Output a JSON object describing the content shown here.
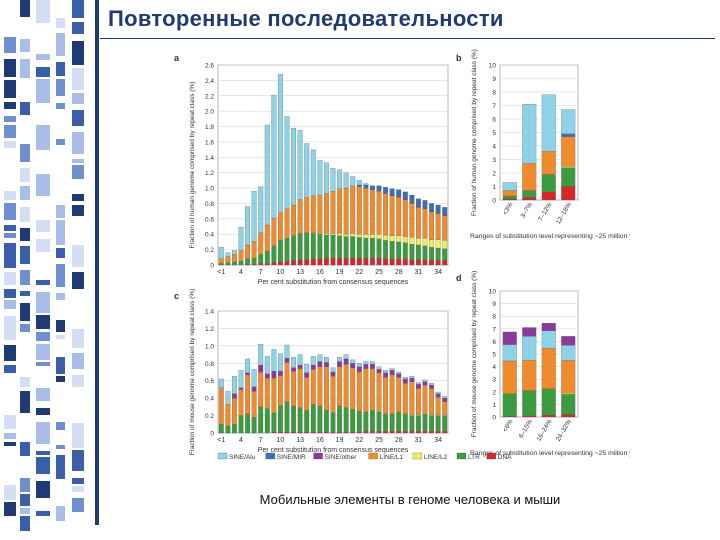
{
  "slide": {
    "title": "Повторенные последовательности",
    "caption": "Мобильные элементы в геноме человека и мыши"
  },
  "colors": {
    "brand": "#1f3b73",
    "SINE/Alu": "#8ed2e8",
    "SINE/MIR": "#3b6fb6",
    "SINE/other": "#8a3a9a",
    "LINE/L1": "#ef8b2c",
    "LINE/L2": "#f0ec63",
    "LTR": "#3d9b3f",
    "DNA": "#d7262a"
  },
  "chart_data": [
    {
      "panel": "a",
      "type": "bar",
      "stacked": true,
      "ylabel": "Fraction of human genome comprised by repeat class (%)",
      "xlabel": "Per cent substitution from consensus sequences",
      "ylim": [
        0,
        2.6
      ],
      "yticks": [
        "0",
        "0.2",
        "0.4",
        "0.6",
        "0.8",
        "1.0",
        "1.2",
        "1.4",
        "1.6",
        "1.8",
        "2.0",
        "2.2",
        "2.4",
        "2.6"
      ],
      "xticks": [
        "<1",
        "4",
        "7",
        "10",
        "13",
        "16",
        "19",
        "22",
        "25",
        "28",
        "31",
        "34"
      ],
      "categories": [
        "<1",
        "2",
        "3",
        "4",
        "5",
        "6",
        "7",
        "8",
        "9",
        "10",
        "11",
        "12",
        "13",
        "14",
        "15",
        "16",
        "17",
        "18",
        "19",
        "20",
        "21",
        "22",
        "23",
        "24",
        "25",
        "26",
        "27",
        "28",
        "29",
        "30",
        "31",
        "32",
        "33",
        "34",
        "35"
      ],
      "series": [
        {
          "name": "DNA",
          "values": [
            0,
            0,
            0,
            0,
            0.01,
            0.01,
            0.02,
            0.02,
            0.03,
            0.04,
            0.05,
            0.06,
            0.07,
            0.07,
            0.08,
            0.08,
            0.09,
            0.09,
            0.09,
            0.09,
            0.09,
            0.09,
            0.09,
            0.09,
            0.09,
            0.08,
            0.08,
            0.08,
            0.08,
            0.07,
            0.07,
            0.07,
            0.06,
            0.06,
            0.06
          ]
        },
        {
          "name": "LTR",
          "values": [
            0.02,
            0.03,
            0.04,
            0.05,
            0.07,
            0.08,
            0.12,
            0.16,
            0.22,
            0.28,
            0.3,
            0.32,
            0.34,
            0.35,
            0.33,
            0.32,
            0.3,
            0.3,
            0.29,
            0.28,
            0.28,
            0.27,
            0.26,
            0.26,
            0.25,
            0.24,
            0.23,
            0.22,
            0.21,
            0.2,
            0.19,
            0.18,
            0.17,
            0.16,
            0.15
          ]
        },
        {
          "name": "LINE/L2",
          "values": [
            0,
            0,
            0,
            0,
            0,
            0,
            0,
            0,
            0,
            0,
            0,
            0,
            0,
            0,
            0.01,
            0.01,
            0.02,
            0.02,
            0.03,
            0.03,
            0.04,
            0.04,
            0.05,
            0.05,
            0.06,
            0.07,
            0.07,
            0.08,
            0.08,
            0.09,
            0.09,
            0.1,
            0.1,
            0.11,
            0.11
          ]
        },
        {
          "name": "LINE/L1",
          "values": [
            0.06,
            0.08,
            0.1,
            0.14,
            0.18,
            0.22,
            0.28,
            0.34,
            0.36,
            0.36,
            0.38,
            0.4,
            0.44,
            0.46,
            0.48,
            0.5,
            0.52,
            0.55,
            0.58,
            0.6,
            0.62,
            0.62,
            0.6,
            0.58,
            0.56,
            0.54,
            0.52,
            0.5,
            0.48,
            0.44,
            0.4,
            0.38,
            0.36,
            0.34,
            0.32
          ]
        },
        {
          "name": "SINE/other",
          "values": [
            0,
            0,
            0,
            0,
            0,
            0,
            0,
            0,
            0,
            0,
            0,
            0,
            0,
            0,
            0,
            0,
            0,
            0,
            0,
            0,
            0,
            0,
            0,
            0,
            0.01,
            0.01,
            0.01,
            0.01,
            0.01,
            0.01,
            0.01,
            0.01,
            0.01,
            0.01,
            0.01
          ]
        },
        {
          "name": "SINE/MIR",
          "values": [
            0,
            0,
            0,
            0,
            0,
            0,
            0,
            0,
            0,
            0,
            0,
            0,
            0,
            0,
            0,
            0,
            0,
            0,
            0,
            0,
            0,
            0.02,
            0.04,
            0.05,
            0.06,
            0.07,
            0.08,
            0.09,
            0.09,
            0.1,
            0.1,
            0.1,
            0.1,
            0.1,
            0.1
          ]
        },
        {
          "name": "SINE/Alu",
          "values": [
            0.15,
            0.05,
            0.05,
            0.3,
            0.5,
            0.65,
            0.6,
            1.3,
            1.6,
            1.8,
            1.2,
            1.0,
            0.9,
            0.7,
            0.6,
            0.45,
            0.4,
            0.3,
            0.25,
            0.2,
            0.12,
            0.06,
            0.02,
            0,
            0,
            0,
            0,
            0,
            0,
            0,
            0,
            0,
            0,
            0,
            0
          ]
        }
      ]
    },
    {
      "panel": "b",
      "type": "bar",
      "stacked": true,
      "ylabel": "Fraction of human genome comprised by repeat class (%)",
      "xlabel": "Ranges of substitution level representing ~25 million years each",
      "ylim": [
        0,
        10
      ],
      "yticks": [
        "0",
        "1",
        "2",
        "3",
        "4",
        "5",
        "6",
        "7",
        "8",
        "9",
        "10"
      ],
      "categories": [
        "<3%",
        "3–7%",
        "7–12%",
        "12–18%"
      ],
      "series": [
        {
          "name": "DNA",
          "values": [
            0.1,
            0.2,
            0.6,
            1.0
          ]
        },
        {
          "name": "LTR",
          "values": [
            0.2,
            0.5,
            1.3,
            1.4
          ]
        },
        {
          "name": "LINE/L2",
          "values": [
            0,
            0,
            0,
            0.1
          ]
        },
        {
          "name": "LINE/L1",
          "values": [
            0.4,
            2.0,
            1.7,
            2.2
          ]
        },
        {
          "name": "SINE/MIR",
          "values": [
            0,
            0,
            0,
            0.2
          ]
        },
        {
          "name": "SINE/Alu",
          "values": [
            0.6,
            4.4,
            4.2,
            1.8
          ]
        }
      ]
    },
    {
      "panel": "c",
      "type": "bar",
      "stacked": true,
      "ylabel": "Fraction of mouse genome comprised by repeat class (%)",
      "xlabel": "Per cent substitution from consensus sequences",
      "ylim": [
        0,
        1.4
      ],
      "yticks": [
        "0",
        "0.2",
        "0.4",
        "0.6",
        "0.8",
        "1.0",
        "1.2",
        "1.4"
      ],
      "xticks": [
        "<1",
        "4",
        "7",
        "10",
        "13",
        "16",
        "19",
        "22",
        "25",
        "28",
        "31",
        "34"
      ],
      "categories": [
        "<1",
        "2",
        "3",
        "4",
        "5",
        "6",
        "7",
        "8",
        "9",
        "10",
        "11",
        "12",
        "13",
        "14",
        "15",
        "16",
        "17",
        "18",
        "19",
        "20",
        "21",
        "22",
        "23",
        "24",
        "25",
        "26",
        "27",
        "28",
        "29",
        "30",
        "31",
        "32",
        "33",
        "34",
        "35"
      ],
      "series": [
        {
          "name": "DNA",
          "values": [
            0,
            0,
            0,
            0,
            0,
            0,
            0,
            0,
            0.01,
            0.01,
            0.01,
            0.01,
            0.01,
            0.01,
            0.01,
            0.01,
            0.01,
            0.01,
            0.01,
            0.01,
            0.01,
            0.01,
            0.02,
            0.02,
            0.02,
            0.02,
            0.02,
            0.02,
            0.02,
            0.02,
            0.02,
            0.02,
            0.02,
            0.02,
            0.02
          ]
        },
        {
          "name": "LTR",
          "values": [
            0.1,
            0.08,
            0.1,
            0.2,
            0.22,
            0.18,
            0.3,
            0.28,
            0.22,
            0.3,
            0.35,
            0.3,
            0.28,
            0.25,
            0.32,
            0.3,
            0.25,
            0.22,
            0.3,
            0.28,
            0.26,
            0.24,
            0.22,
            0.24,
            0.22,
            0.2,
            0.2,
            0.22,
            0.2,
            0.18,
            0.18,
            0.2,
            0.18,
            0.18,
            0.18
          ]
        },
        {
          "name": "LINE/L2",
          "values": [
            0,
            0,
            0,
            0,
            0,
            0,
            0,
            0,
            0,
            0,
            0,
            0,
            0,
            0,
            0,
            0,
            0,
            0,
            0,
            0,
            0,
            0,
            0,
            0,
            0,
            0,
            0,
            0,
            0,
            0.01,
            0.01,
            0.01,
            0.01,
            0.01,
            0.01
          ]
        },
        {
          "name": "LINE/L1",
          "values": [
            0.42,
            0.25,
            0.3,
            0.3,
            0.45,
            0.3,
            0.4,
            0.35,
            0.4,
            0.35,
            0.45,
            0.4,
            0.45,
            0.38,
            0.4,
            0.45,
            0.5,
            0.42,
            0.45,
            0.5,
            0.48,
            0.45,
            0.5,
            0.48,
            0.45,
            0.42,
            0.45,
            0.4,
            0.35,
            0.38,
            0.3,
            0.32,
            0.3,
            0.2,
            0.15
          ]
        },
        {
          "name": "SINE/other",
          "values": [
            0,
            0,
            0.05,
            0.02,
            0.02,
            0.05,
            0.08,
            0.05,
            0.08,
            0.05,
            0.05,
            0.04,
            0.04,
            0.05,
            0.05,
            0.06,
            0.05,
            0.05,
            0.06,
            0.06,
            0.05,
            0.06,
            0.05,
            0.05,
            0.04,
            0.05,
            0.05,
            0.04,
            0.05,
            0.04,
            0.05,
            0.04,
            0.04,
            0.04,
            0.04
          ]
        },
        {
          "name": "SINE/MIR",
          "values": [
            0,
            0,
            0,
            0,
            0,
            0,
            0,
            0,
            0,
            0,
            0,
            0,
            0,
            0,
            0,
            0,
            0,
            0,
            0,
            0,
            0,
            0,
            0,
            0,
            0,
            0,
            0,
            0,
            0,
            0,
            0,
            0,
            0,
            0,
            0
          ]
        },
        {
          "name": "SINE/Alu",
          "values": [
            0.1,
            0.15,
            0.2,
            0.2,
            0.16,
            0.2,
            0.24,
            0.2,
            0.25,
            0.2,
            0.15,
            0.12,
            0.12,
            0.1,
            0.1,
            0.08,
            0.06,
            0.05,
            0.05,
            0.05,
            0.04,
            0.04,
            0.03,
            0.03,
            0.03,
            0.03,
            0.02,
            0.02,
            0.02,
            0.02,
            0.02,
            0.02,
            0.02,
            0.02,
            0.02
          ]
        }
      ]
    },
    {
      "panel": "d",
      "type": "bar",
      "stacked": true,
      "ylabel": "Fraction of mouse genome comprised by repeat class (%)",
      "xlabel": "Ranges of substitution level representing ~25 million years each",
      "ylim": [
        0,
        10
      ],
      "yticks": [
        "0",
        "1",
        "2",
        "3",
        "4",
        "5",
        "6",
        "7",
        "8",
        "9",
        "10"
      ],
      "categories": [
        "<6%",
        "6–15%",
        "16–24%",
        "24–32%"
      ],
      "series": [
        {
          "name": "DNA",
          "values": [
            0.05,
            0.1,
            0.15,
            0.2
          ]
        },
        {
          "name": "LTR",
          "values": [
            1.8,
            2.0,
            2.1,
            1.6
          ]
        },
        {
          "name": "LINE/L2",
          "values": [
            0,
            0,
            0,
            0.1
          ]
        },
        {
          "name": "LINE/L1",
          "values": [
            2.6,
            2.4,
            3.2,
            2.6
          ]
        },
        {
          "name": "SINE/Alu",
          "values": [
            1.3,
            1.9,
            1.4,
            1.2
          ]
        },
        {
          "name": "SINE/other",
          "values": [
            1.0,
            0.7,
            0.6,
            0.7
          ]
        }
      ]
    }
  ],
  "legend": [
    "SINE/Alu",
    "SINE/MIR",
    "SINE/other",
    "LINE/L1",
    "LINE/L2",
    "LTR",
    "DNA"
  ]
}
